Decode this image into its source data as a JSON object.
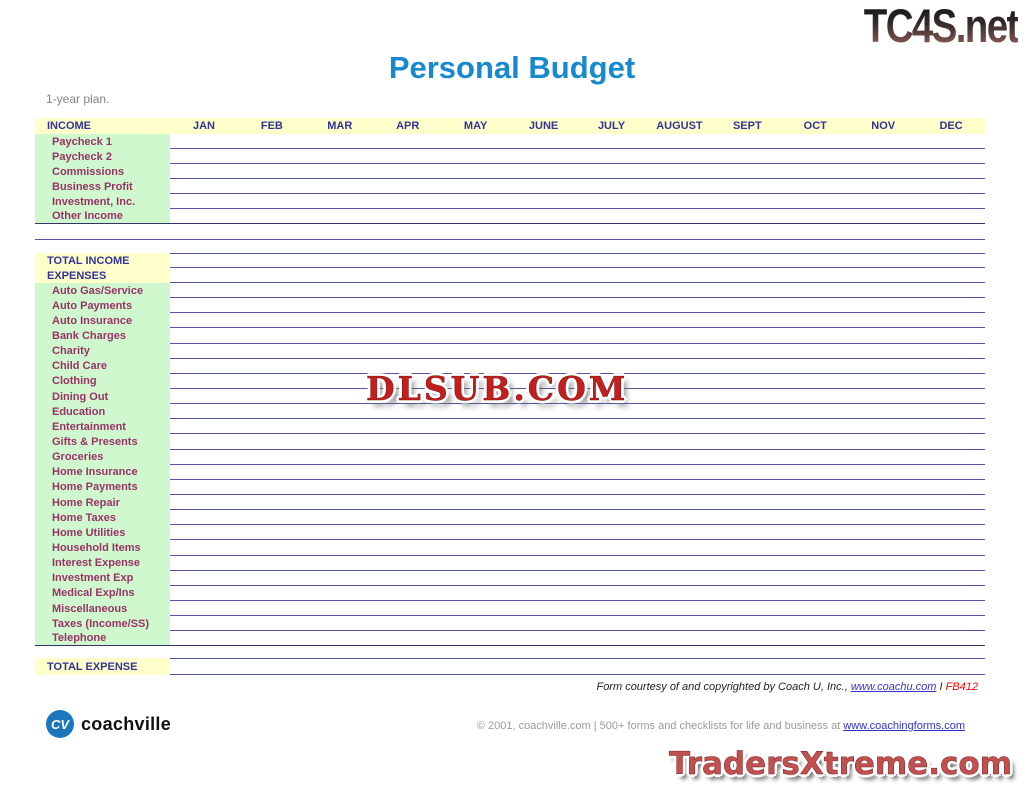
{
  "branding": {
    "tc4s": "TC4S.net",
    "traders": "TradersXtreme.com",
    "watermark": "DLSUB.COM",
    "coachville_initials": "CV",
    "coachville_name": "coachville"
  },
  "header": {
    "title": "Personal Budget",
    "subtitle": "1-year plan."
  },
  "table": {
    "income_label": "INCOME",
    "months": [
      "JAN",
      "FEB",
      "MAR",
      "APR",
      "MAY",
      "JUNE",
      "JULY",
      "AUGUST",
      "SEPT",
      "OCT",
      "NOV",
      "DEC"
    ],
    "income_rows": [
      "Paycheck 1",
      "Paycheck 2",
      "Commissions",
      "Business Profit",
      "Investment, Inc.",
      "Other Income"
    ],
    "total_income_label": "TOTAL INCOME",
    "expenses_label": "EXPENSES",
    "expense_rows": [
      "Auto Gas/Service",
      "Auto Payments",
      "Auto Insurance",
      "Bank Charges",
      "Charity",
      "Child Care",
      "Clothing",
      "Dining Out",
      "Education",
      "Entertainment",
      "Gifts & Presents",
      "Groceries",
      "Home Insurance",
      "Home Payments",
      "Home Repair",
      "Home Taxes",
      "Home Utilities",
      "Household Items",
      "Interest Expense",
      "Investment Exp",
      "Medical Exp/Ins",
      "Miscellaneous",
      "Taxes (Income/SS)",
      "Telephone"
    ],
    "total_expense_label": "TOTAL EXPENSE"
  },
  "footer": {
    "credit_prefix": "Form courtesy of and copyrighted by Coach U, Inc., ",
    "credit_link": "www.coachu.com",
    "credit_separator": " I ",
    "credit_code": "FB412",
    "copyright_prefix": "© 2001, coachville.com | 500+ forms and checklists for life and business at ",
    "copyright_link": "www.coachingforms.com"
  },
  "colors": {
    "title_blue": "#1789CE",
    "section_navy": "#333399",
    "row_maroon": "#993366",
    "band_yellow": "#FFFFCC",
    "band_green": "#CFF8CF",
    "row_line": "#5555A5",
    "section_line": "#333366",
    "credit_red": "#FF0000",
    "link_blue": "#3333CC",
    "coachville_blue": "#1B76BC",
    "watermark_red": "#C41E1E",
    "traders_red": "#C25050"
  }
}
